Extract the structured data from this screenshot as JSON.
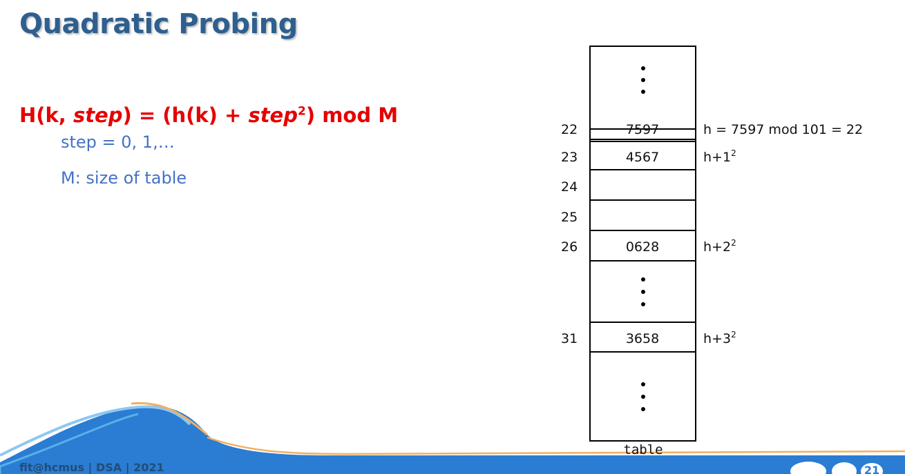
{
  "slide": {
    "title": "Quadratic Probing",
    "formula": {
      "prefix": "H(k, ",
      "step1": "step",
      "mid": ") = (h(k) + ",
      "step2": "step",
      "exp": "2",
      "suffix": ") mod M"
    },
    "notes": [
      "step = 0, 1,…",
      "M: size of table"
    ],
    "footer": "fit@hcmus | DSA | 2021",
    "page_number": "21"
  },
  "diagram": {
    "table_label": "table",
    "rows": [
      {
        "index": "22",
        "value": "7597",
        "note_base": "h = 7597 mod 101 = 22",
        "note_exp": ""
      },
      {
        "index": "23",
        "value": "4567",
        "note_base": "h+1",
        "note_exp": "2"
      },
      {
        "index": "24",
        "value": "",
        "note_base": "",
        "note_exp": ""
      },
      {
        "index": "25",
        "value": "",
        "note_base": "",
        "note_exp": ""
      },
      {
        "index": "26",
        "value": "0628",
        "note_base": "h+2",
        "note_exp": "2"
      },
      {
        "index": "31",
        "value": "3658",
        "note_base": "h+3",
        "note_exp": "2"
      }
    ],
    "colors": {
      "title": "#2e5f8e",
      "formula": "#e60000",
      "notes": "#4472c4",
      "footer_wave": "#2b7cd3"
    }
  }
}
